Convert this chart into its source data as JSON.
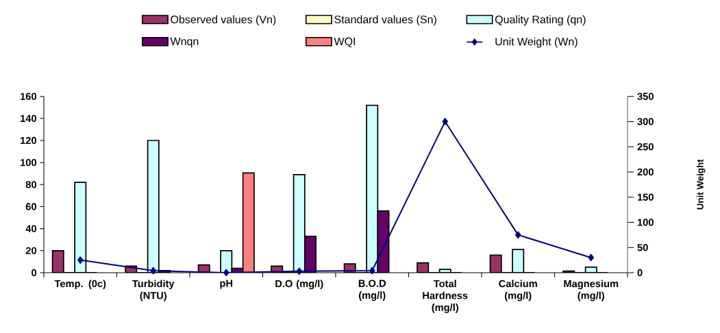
{
  "chart_data": {
    "type": "bar",
    "categories": [
      "Temp. (0c)",
      "Turbidity (NTU)",
      "pH",
      "D.O (mg/l)",
      "B.O.D (mg/l)",
      "Total Hardness (mg/l)",
      "Calcium (mg/l)",
      "Magnesium (mg/l)"
    ],
    "series": [
      {
        "name": "Observed values (Vn)",
        "color": "#993366",
        "values": [
          20,
          6,
          7,
          6,
          8,
          9,
          16,
          1.5
        ]
      },
      {
        "name": "Standard values (Sn)",
        "color": "#ffffcc",
        "values": [
          0,
          0,
          0,
          0,
          0,
          0,
          0,
          0
        ]
      },
      {
        "name": "Quality Rating (qn)",
        "color": "#ccffff",
        "values": [
          82,
          120,
          20,
          89,
          152,
          3,
          21,
          5
        ]
      },
      {
        "name": "Wnqn",
        "color": "#660066",
        "values": [
          0,
          2,
          4,
          33,
          56,
          0,
          0,
          0
        ]
      },
      {
        "name": "WQI",
        "color": "#ff8080",
        "values": [
          null,
          null,
          90.5,
          null,
          null,
          null,
          null,
          null
        ]
      },
      {
        "name": "Unit Weight (Wn)",
        "color": "#000080",
        "type": "line",
        "axis": "y2",
        "marker": "diamond",
        "values": [
          25,
          4,
          0,
          3,
          4,
          300,
          75,
          30
        ]
      }
    ],
    "ylim": [
      0,
      160
    ],
    "yticks": [
      0,
      20,
      40,
      60,
      80,
      100,
      120,
      140,
      160
    ],
    "y2lim": [
      0,
      350
    ],
    "y2ticks": [
      0,
      50,
      100,
      150,
      200,
      250,
      300,
      350
    ],
    "y2label": "Unit Weight",
    "legend": "top",
    "grid": false
  }
}
